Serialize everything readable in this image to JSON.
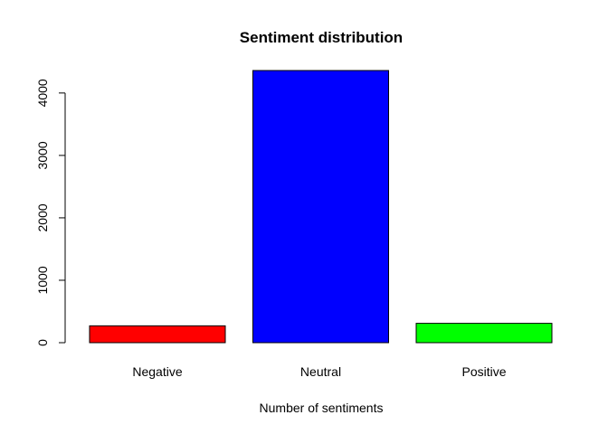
{
  "chart_data": {
    "type": "bar",
    "title": "Sentiment distribution",
    "xlabel": "Number of sentiments",
    "ylabel": "",
    "categories": [
      "Negative",
      "Neutral",
      "Positive"
    ],
    "values": [
      270,
      4360,
      310
    ],
    "colors": [
      "#ff0000",
      "#0000ff",
      "#00ff00"
    ],
    "ylim": [
      0,
      4360
    ],
    "yticks": [
      0,
      1000,
      2000,
      3000,
      4000
    ],
    "grid": false,
    "legend": "none"
  }
}
